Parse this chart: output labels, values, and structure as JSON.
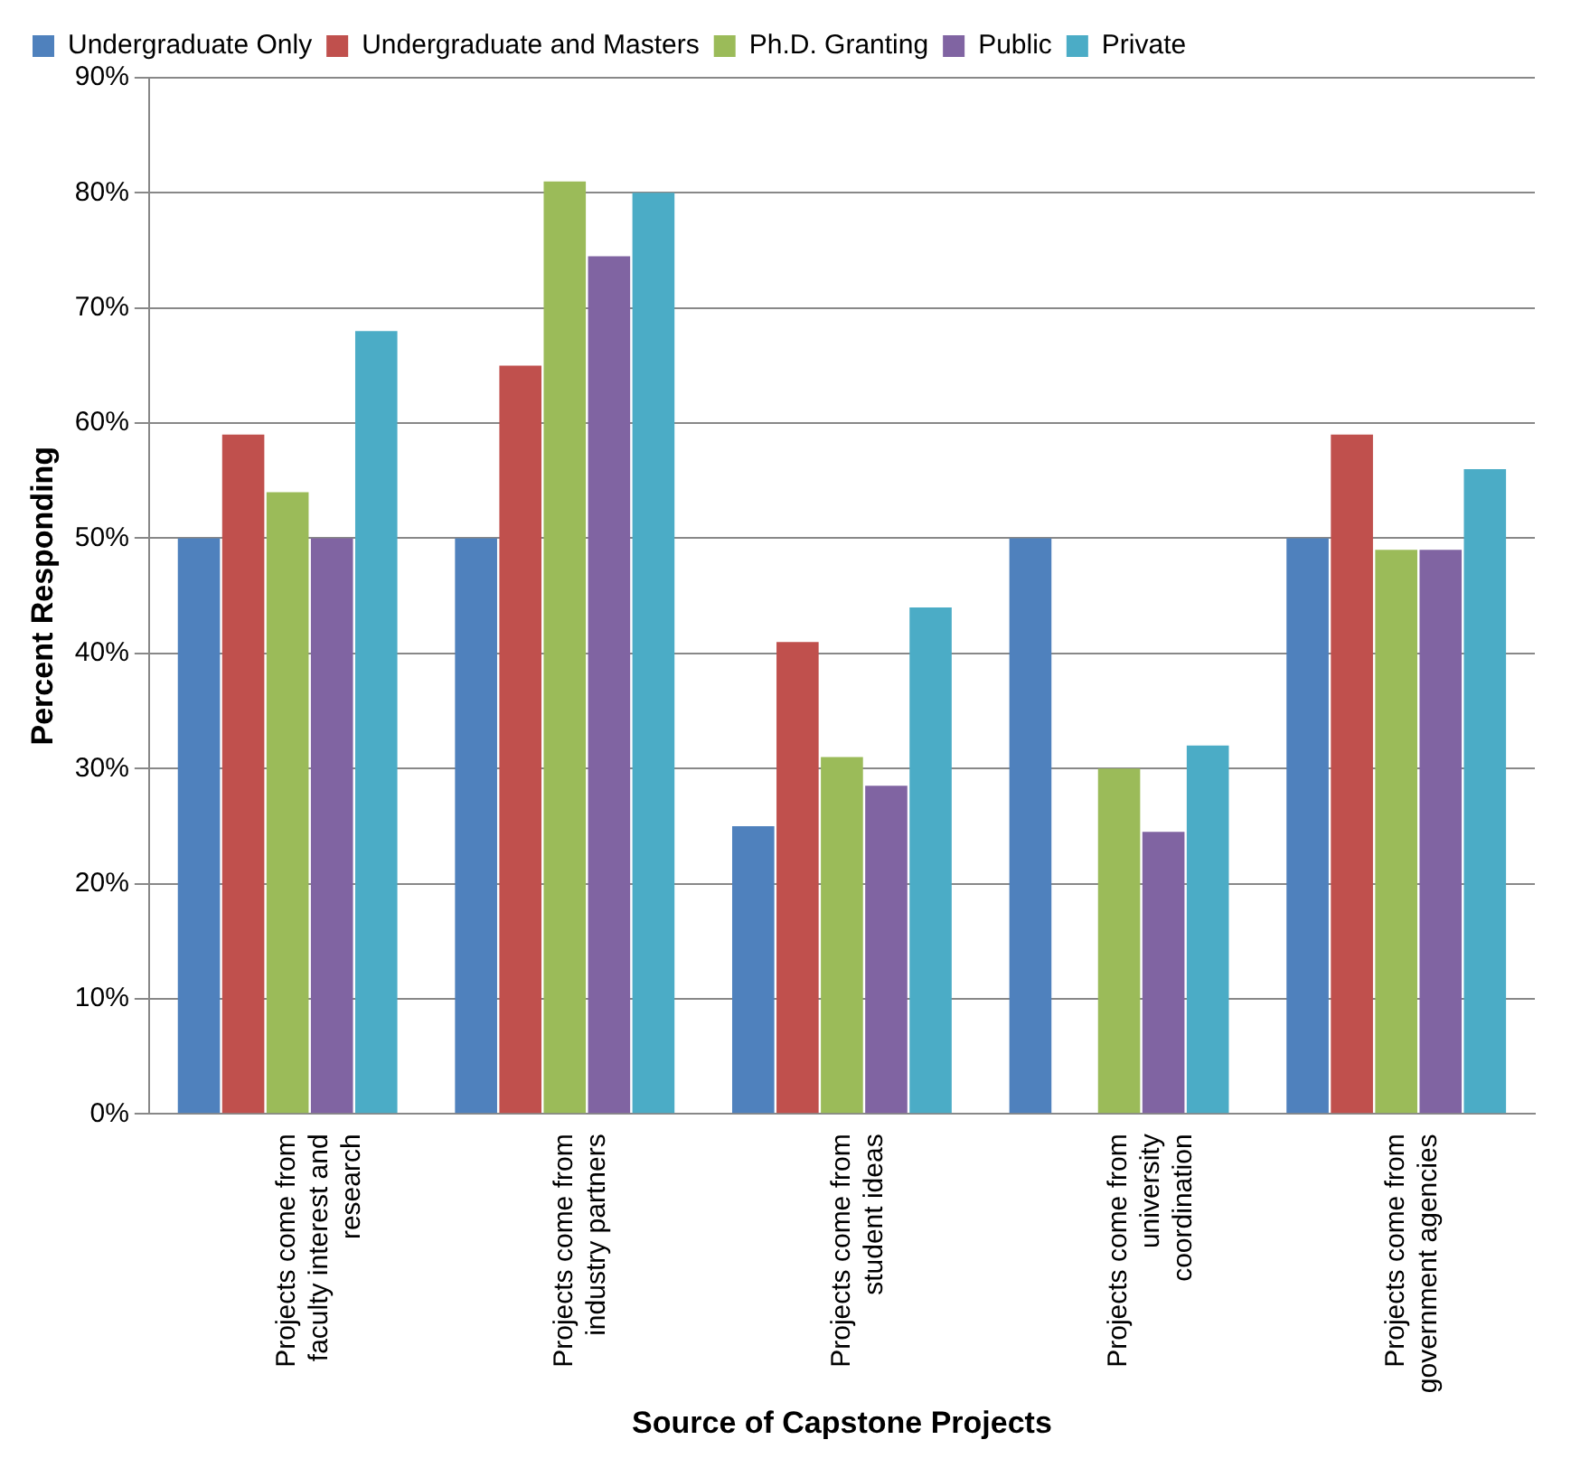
{
  "chart_data": {
    "type": "bar",
    "xlabel": "Source of Capstone Projects",
    "ylabel": "Percent Responding",
    "categories": [
      "Projects come from faculty interest and research",
      "Projects come from industry partners",
      "Projects come from student ideas",
      "Projects come from university coordination",
      "Projects come from government agencies"
    ],
    "series": [
      {
        "name": "Undergraduate Only",
        "color": "#4f81bd",
        "values": [
          50,
          50,
          25,
          50,
          50
        ]
      },
      {
        "name": "Undergraduate and Masters",
        "color": "#c0504d",
        "values": [
          59,
          65,
          41,
          0,
          59
        ]
      },
      {
        "name": "Ph.D. Granting",
        "color": "#9bbb59",
        "values": [
          54,
          81,
          31,
          30,
          49
        ]
      },
      {
        "name": "Public",
        "color": "#8064a2",
        "values": [
          50,
          74.5,
          28.5,
          24.5,
          49
        ]
      },
      {
        "name": "Private",
        "color": "#4bacc6",
        "values": [
          68,
          80,
          44,
          32,
          56
        ]
      }
    ],
    "ylim": [
      0,
      90
    ],
    "yticks": [
      {
        "value": 0,
        "label": "0%"
      },
      {
        "value": 10,
        "label": "10%"
      },
      {
        "value": 20,
        "label": "20%"
      },
      {
        "value": 30,
        "label": "30%"
      },
      {
        "value": 40,
        "label": "40%"
      },
      {
        "value": 50,
        "label": "50%"
      },
      {
        "value": 60,
        "label": "60%"
      },
      {
        "value": 70,
        "label": "70%"
      },
      {
        "value": 80,
        "label": "80%"
      },
      {
        "value": 90,
        "label": "90%"
      }
    ],
    "grid": "y",
    "legend": "top"
  }
}
